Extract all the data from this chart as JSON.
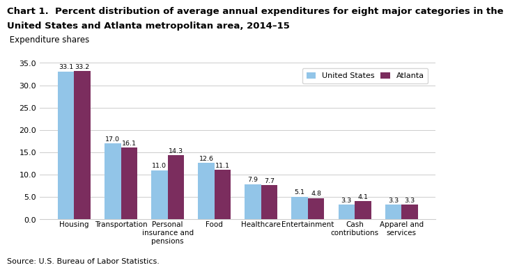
{
  "title_line1": "Chart 1.  Percent distribution of average annual expenditures for eight major categories in the",
  "title_line2": "United States and Atlanta metropolitan area, 2014–15",
  "subtitle": " Expenditure shares",
  "source": "Source: U.S. Bureau of Labor Statistics.",
  "categories": [
    "Housing",
    "Transportation",
    "Personal\ninsurance and\npensions",
    "Food",
    "Healthcare",
    "Entertainment",
    "Cash\ncontributions",
    "Apparel and\nservices"
  ],
  "us_values": [
    33.1,
    17.0,
    11.0,
    12.6,
    7.9,
    5.1,
    3.3,
    3.3
  ],
  "atlanta_values": [
    33.2,
    16.1,
    14.3,
    11.1,
    7.7,
    4.8,
    4.1,
    3.3
  ],
  "us_color": "#92C5E8",
  "atlanta_color": "#7B2D5E",
  "us_label": "United States",
  "atlanta_label": "Atlanta",
  "ylim": [
    0,
    35.0
  ],
  "yticks": [
    0.0,
    5.0,
    10.0,
    15.0,
    20.0,
    25.0,
    30.0,
    35.0
  ],
  "bar_width": 0.35,
  "title_fontsize": 9.5,
  "subtitle_fontsize": 8.5,
  "tick_fontsize": 8,
  "label_fontsize": 7.5,
  "value_fontsize": 6.8,
  "legend_fontsize": 8,
  "source_fontsize": 8
}
